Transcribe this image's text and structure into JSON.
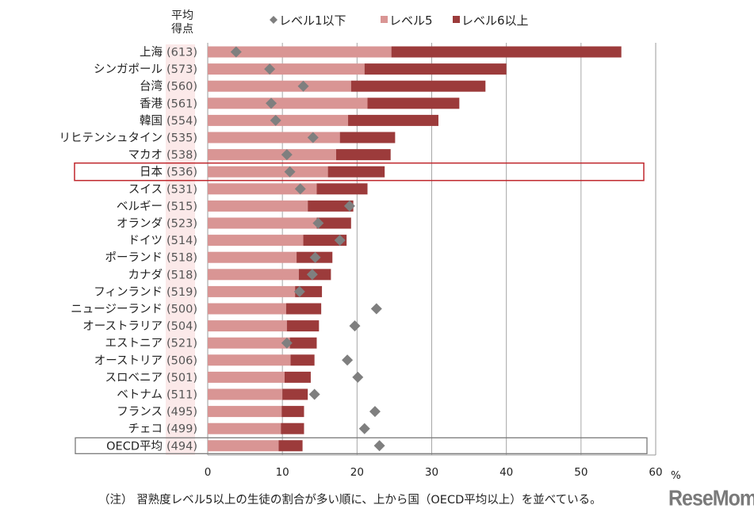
{
  "chart_data": {
    "type": "bar",
    "orientation": "horizontal",
    "stacked": true,
    "title": "",
    "xlabel": "",
    "x_unit": "%",
    "ylabel_header": [
      "平均",
      "得点"
    ],
    "xlim": [
      0,
      60
    ],
    "xticks": [
      "0",
      "10",
      "20",
      "30",
      "40",
      "50",
      "60"
    ],
    "grid": "vertical",
    "legend_position": "top",
    "legend": [
      {
        "key": "below1",
        "label": "レベル1以下",
        "marker": "diamond",
        "color": "#7f7f7f"
      },
      {
        "key": "level5",
        "label": "レベル5",
        "marker": "square",
        "color": "#d99594"
      },
      {
        "key": "level6",
        "label": "レベル6以上",
        "marker": "square",
        "color": "#9c3b3b"
      }
    ],
    "categories": [
      {
        "name": "上海",
        "score": "(613)"
      },
      {
        "name": "シンガポール",
        "score": "(573)"
      },
      {
        "name": "台湾",
        "score": "(560)"
      },
      {
        "name": "香港",
        "score": "(561)"
      },
      {
        "name": "韓国",
        "score": "(554)"
      },
      {
        "name": "リヒテンシュタイン",
        "score": "(535)"
      },
      {
        "name": "マカオ",
        "score": "(538)"
      },
      {
        "name": "日本",
        "score": "(536)",
        "highlight": "red"
      },
      {
        "name": "スイス",
        "score": "(531)"
      },
      {
        "name": "ベルギー",
        "score": "(515)"
      },
      {
        "name": "オランダ",
        "score": "(523)"
      },
      {
        "name": "ドイツ",
        "score": "(514)"
      },
      {
        "name": "ポーランド",
        "score": "(518)"
      },
      {
        "name": "カナダ",
        "score": "(518)"
      },
      {
        "name": "フィンランド",
        "score": "(519)"
      },
      {
        "name": "ニュージーランド",
        "score": "(500)"
      },
      {
        "name": "オーストラリア",
        "score": "(504)"
      },
      {
        "name": "エストニア",
        "score": "(521)"
      },
      {
        "name": "オーストリア",
        "score": "(506)"
      },
      {
        "name": "スロベニア",
        "score": "(501)"
      },
      {
        "name": "ベトナム",
        "score": "(511)"
      },
      {
        "name": "フランス",
        "score": "(495)"
      },
      {
        "name": "チェコ",
        "score": "(499)"
      },
      {
        "name": "OECD平均",
        "score": "(494)",
        "highlight": "gray"
      }
    ],
    "series": [
      {
        "name": "レベル5",
        "values": [
          24.6,
          21.0,
          19.2,
          21.4,
          18.8,
          17.7,
          17.2,
          16.1,
          14.6,
          13.4,
          14.6,
          12.8,
          11.9,
          12.2,
          11.7,
          10.5,
          10.6,
          11.0,
          11.1,
          10.3,
          10.0,
          9.9,
          9.8,
          9.5
        ]
      },
      {
        "name": "レベル6以上",
        "values": [
          30.8,
          19.0,
          18.0,
          12.3,
          12.1,
          7.4,
          7.3,
          7.6,
          6.8,
          6.1,
          4.6,
          5.8,
          4.8,
          4.3,
          3.6,
          4.7,
          4.3,
          3.6,
          3.2,
          3.5,
          3.4,
          3.0,
          3.1,
          3.2
        ]
      },
      {
        "name": "レベル1以下",
        "values": [
          3.8,
          8.3,
          12.8,
          8.5,
          9.1,
          14.1,
          10.6,
          11.0,
          12.4,
          19.0,
          14.8,
          17.7,
          14.4,
          14.0,
          12.3,
          22.6,
          19.7,
          10.6,
          18.7,
          20.1,
          14.3,
          22.4,
          21.0,
          23.0
        ]
      }
    ]
  },
  "note": "（注） 習熟度レベル5以上の生徒の割合が多い順に、上から国（OECD平均以上）を並べている。",
  "watermark": "ReseMom"
}
